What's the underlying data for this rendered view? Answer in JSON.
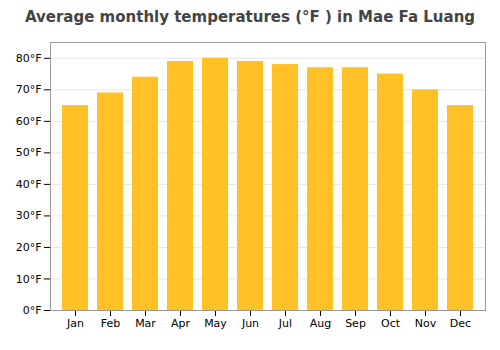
{
  "chart_data": {
    "type": "bar",
    "title": "Average monthly temperatures (°F ) in Mae Fa Luang",
    "categories": [
      "Jan",
      "Feb",
      "Mar",
      "Apr",
      "May",
      "Jun",
      "Jul",
      "Aug",
      "Sep",
      "Oct",
      "Nov",
      "Dec"
    ],
    "values": [
      65,
      69,
      74,
      79,
      80,
      79,
      78,
      77,
      77,
      75,
      70,
      65
    ],
    "color": "#FFC125",
    "ylim": [
      0,
      85
    ],
    "yticks": [
      {
        "value": 0,
        "label": "0°F"
      },
      {
        "value": 10,
        "label": "10°F"
      },
      {
        "value": 20,
        "label": "20°F"
      },
      {
        "value": 30,
        "label": "30°F"
      },
      {
        "value": 40,
        "label": "40°F"
      },
      {
        "value": 50,
        "label": "50°F"
      },
      {
        "value": 60,
        "label": "60°F"
      },
      {
        "value": 70,
        "label": "70°F"
      },
      {
        "value": 80,
        "label": "80°F"
      }
    ],
    "grid": true
  }
}
